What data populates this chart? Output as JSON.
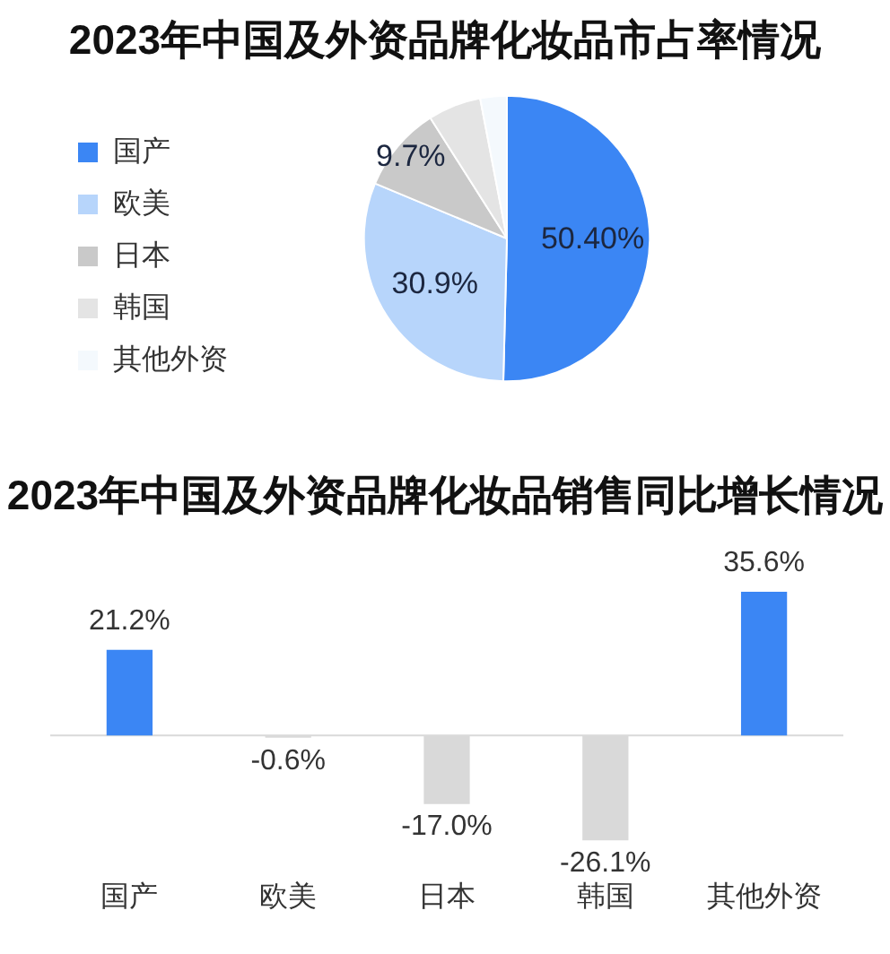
{
  "chart_data": [
    {
      "type": "pie",
      "title": "2023年中国及外资品牌化妆品市占率情况",
      "categories": [
        "国产",
        "欧美",
        "日本",
        "韩国",
        "其他外资"
      ],
      "values": [
        50.4,
        30.9,
        9.7,
        6,
        3
      ],
      "colors": [
        "#3b86f4",
        "#b7d5fb",
        "#c9c9c9",
        "#e4e4e4",
        "#f4f9fd"
      ],
      "value_labels": [
        "50.40%",
        "30.9%",
        "9.7%",
        null,
        null
      ],
      "legend": "left"
    },
    {
      "type": "bar",
      "title": "2023年中国及外资品牌化妆品销售同比增长情况",
      "categories": [
        "国产",
        "欧美",
        "日本",
        "韩国",
        "其他外资"
      ],
      "values": [
        21.2,
        -0.6,
        -17.0,
        -26.1,
        35.6
      ],
      "colors": [
        "#3b86f4",
        "#d9d9d9",
        "#d9d9d9",
        "#d9d9d9",
        "#3b86f4"
      ],
      "value_labels": [
        "21.2%",
        "-0.6%",
        "-17.0%",
        "-26.1%",
        "35.6%"
      ]
    }
  ]
}
